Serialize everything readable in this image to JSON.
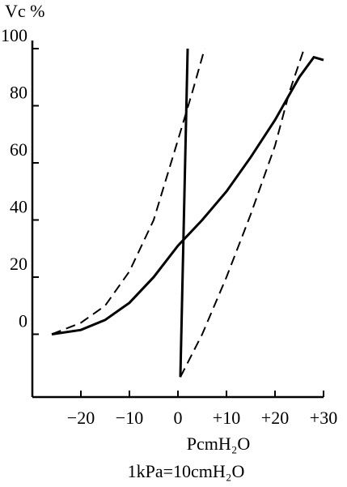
{
  "chart_data": {
    "type": "line",
    "title": "Vc %",
    "x_label": "PcmH₂O",
    "note": "1kPa=10cmH₂O",
    "xlim": [
      -30,
      30
    ],
    "ylim": [
      -22,
      100
    ],
    "xticks": [
      {
        "value": -20,
        "label": "−20"
      },
      {
        "value": -10,
        "label": "−10"
      },
      0,
      {
        "value": 10,
        "label": "+10"
      },
      {
        "value": 20,
        "label": "+20"
      },
      {
        "value": 30,
        "label": "+30"
      }
    ],
    "yticks": [
      0,
      20,
      40,
      60,
      80,
      100
    ],
    "series": [
      {
        "color": "#000000",
        "dashed": false,
        "x": [
          -26,
          -20,
          -15,
          -10,
          -5,
          0,
          5,
          10,
          15,
          20,
          25,
          28,
          30
        ],
        "values": [
          0,
          1.5,
          5,
          11,
          20,
          31,
          40,
          50,
          62,
          75,
          90,
          97,
          96
        ]
      },
      {
        "color": "#000000",
        "dashed": true,
        "x": [
          -26,
          -20,
          -15,
          -10,
          -5,
          0,
          3,
          5.5
        ],
        "values": [
          0,
          4,
          10,
          22,
          40,
          68,
          85,
          100
        ]
      },
      {
        "color": "#000000",
        "dashed": true,
        "x": [
          0.5,
          5,
          10,
          15,
          20,
          23,
          26
        ],
        "values": [
          -15,
          0,
          20,
          42,
          66,
          85,
          100
        ]
      },
      {
        "color": "#000000",
        "dashed": false,
        "x": [
          0.5,
          2
        ],
        "values": [
          -15,
          100
        ]
      }
    ]
  }
}
